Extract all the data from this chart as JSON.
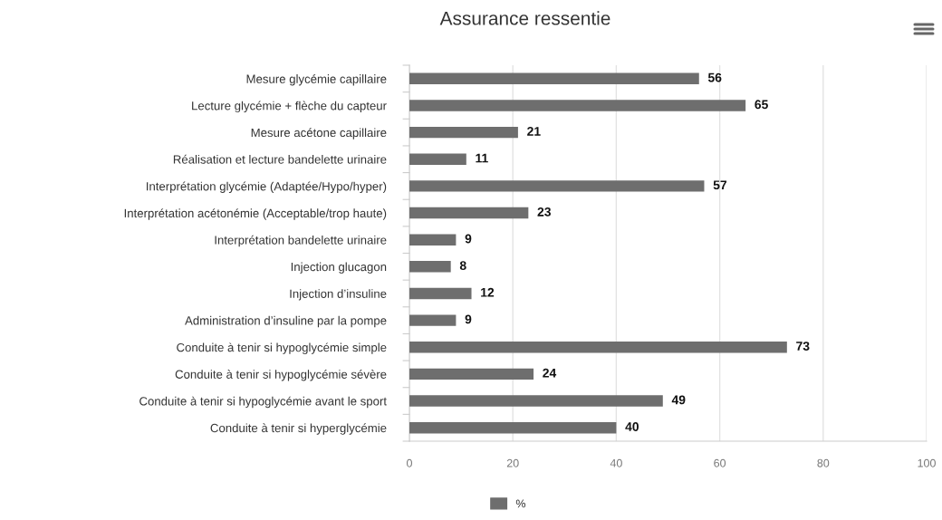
{
  "chart_data": {
    "type": "bar",
    "orientation": "horizontal",
    "title": "Assurance ressentie",
    "categories": [
      "Mesure glycémie capillaire",
      "Lecture glycémie + flèche du capteur",
      "Mesure acétone capillaire",
      "Réalisation et lecture bandelette urinaire",
      "Interprétation glycémie (Adaptée/Hypo/hyper)",
      "Interprétation acétonémie (Acceptable/trop haute)",
      "Interprétation bandelette urinaire",
      "Injection glucagon",
      "Injection d’insuline",
      "Administration d’insuline par la pompe",
      "Conduite à tenir si hypoglycémie simple",
      "Conduite à tenir si hypoglycémie sévère",
      "Conduite à tenir si hypoglycémie avant le sport",
      "Conduite à tenir si hyperglycémie"
    ],
    "series": [
      {
        "name": "%",
        "color": "#6e6e6e",
        "values": [
          56,
          65,
          21,
          11,
          57,
          23,
          9,
          8,
          12,
          9,
          73,
          24,
          49,
          40
        ]
      }
    ],
    "xlim": [
      0,
      100
    ],
    "xticks": [
      0,
      20,
      40,
      60,
      80,
      100
    ],
    "grid": "x",
    "legend": "bottom",
    "data_labels": true
  }
}
